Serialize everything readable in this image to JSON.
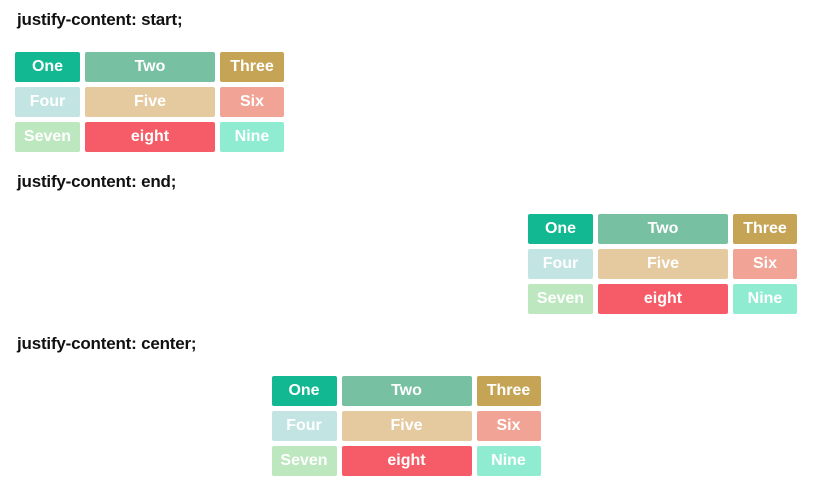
{
  "page": {
    "background": "#ffffff",
    "heading_color": "#111111"
  },
  "sections": [
    {
      "heading": "justify-content: start;",
      "justify": "start"
    },
    {
      "heading": "justify-content: end;",
      "justify": "end"
    },
    {
      "heading": "justify-content: center;",
      "justify": "center"
    }
  ],
  "grid": {
    "text_color": "#ffffff",
    "items": [
      {
        "label": "One",
        "color": "#12b891"
      },
      {
        "label": "Two",
        "color": "#78c0a2"
      },
      {
        "label": "Three",
        "color": "#c6a455"
      },
      {
        "label": "Four",
        "color": "#c2e5e3"
      },
      {
        "label": "Five",
        "color": "#e5caa0"
      },
      {
        "label": "Six",
        "color": "#f1a396"
      },
      {
        "label": "Seven",
        "color": "#bce7bf"
      },
      {
        "label": "eight",
        "color": "#f55c67"
      },
      {
        "label": "Nine",
        "color": "#8fecd0"
      }
    ]
  }
}
